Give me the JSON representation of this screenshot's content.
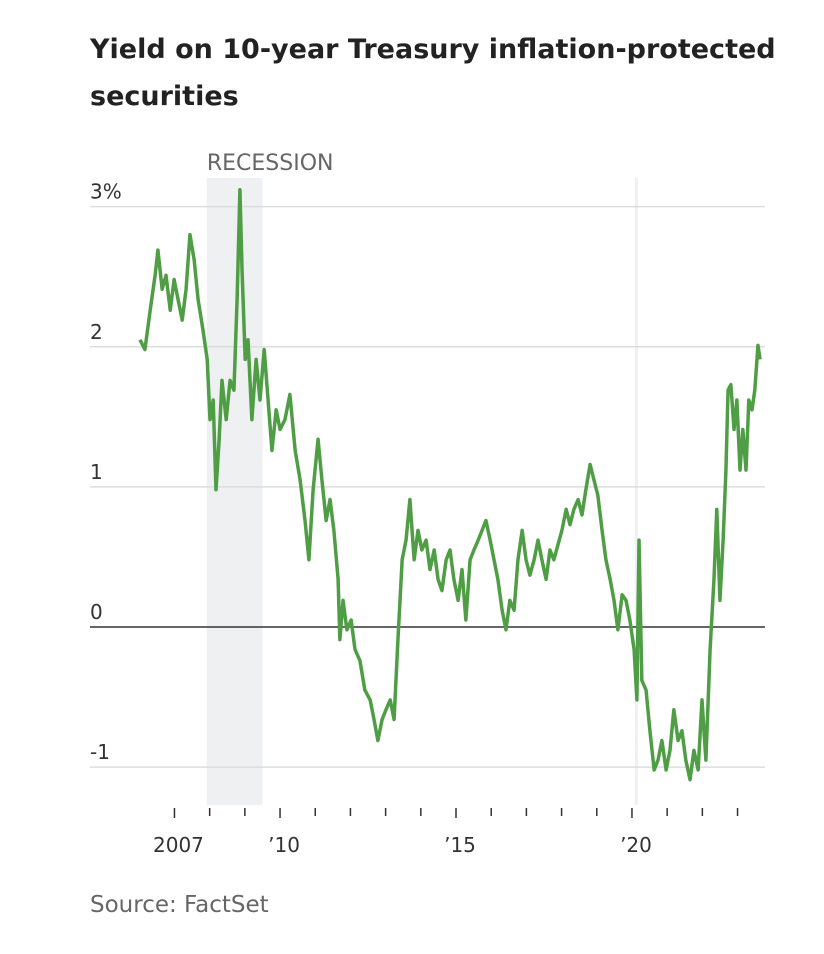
{
  "chart_data": {
    "type": "line",
    "title": "Yield on 10-year Treasury inflation-protected securities",
    "source": "Source: FactSet",
    "recession_label": "RECESSION",
    "recessions": [
      [
        2007.92,
        2009.5
      ],
      [
        2020.08,
        2020.17
      ]
    ],
    "color": "#4f9e45",
    "grid": true,
    "xlim": [
      2004.6,
      2023.78
    ],
    "ylim": [
      -1.27,
      3.19
    ],
    "xticks": [
      2007,
      {
        "value": 2010,
        "label": "’10"
      },
      {
        "value": 2015,
        "label": "’15"
      },
      {
        "value": 2020,
        "label": "’20"
      }
    ],
    "xminorticks": [
      2008,
      2009,
      2011,
      2012,
      2013,
      2014,
      2016,
      2017,
      2018,
      2019,
      2021,
      2022,
      2023
    ],
    "yticks": [
      {
        "value": 3,
        "label": "3%"
      },
      2,
      1,
      0,
      -1
    ],
    "x": [
      2006.02,
      2006.16,
      2006.31,
      2006.45,
      2006.53,
      2006.65,
      2006.76,
      2006.88,
      2006.99,
      2007.1,
      2007.22,
      2007.33,
      2007.44,
      2007.56,
      2007.67,
      2007.81,
      2007.93,
      2008.01,
      2008.1,
      2008.18,
      2008.27,
      2008.35,
      2008.47,
      2008.58,
      2008.69,
      2008.78,
      2008.86,
      2008.92,
      2009.01,
      2009.09,
      2009.2,
      2009.32,
      2009.43,
      2009.55,
      2009.66,
      2009.77,
      2009.89,
      2010.0,
      2010.14,
      2010.28,
      2010.43,
      2010.57,
      2010.71,
      2010.82,
      2010.94,
      2011.08,
      2011.19,
      2011.31,
      2011.42,
      2011.53,
      2011.65,
      2011.7,
      2011.79,
      2011.9,
      2012.02,
      2012.13,
      2012.27,
      2012.41,
      2012.56,
      2012.67,
      2012.78,
      2012.9,
      2013.01,
      2013.13,
      2013.24,
      2013.35,
      2013.47,
      2013.58,
      2013.69,
      2013.81,
      2013.92,
      2014.03,
      2014.15,
      2014.26,
      2014.38,
      2014.49,
      2014.6,
      2014.72,
      2014.83,
      2014.94,
      2015.06,
      2015.17,
      2015.28,
      2015.4,
      2015.51,
      2015.63,
      2015.74,
      2015.85,
      2015.97,
      2016.08,
      2016.19,
      2016.31,
      2016.42,
      2016.53,
      2016.65,
      2016.76,
      2016.88,
      2016.99,
      2017.1,
      2017.22,
      2017.33,
      2017.44,
      2017.56,
      2017.67,
      2017.78,
      2017.9,
      2018.01,
      2018.13,
      2018.24,
      2018.35,
      2018.47,
      2018.58,
      2018.69,
      2018.81,
      2018.92,
      2019.03,
      2019.15,
      2019.26,
      2019.38,
      2019.49,
      2019.6,
      2019.72,
      2019.83,
      2019.94,
      2020.06,
      2020.14,
      2020.2,
      2020.28,
      2020.4,
      2020.51,
      2020.63,
      2020.74,
      2020.85,
      2020.97,
      2021.08,
      2021.19,
      2021.31,
      2021.42,
      2021.53,
      2021.65,
      2021.76,
      2021.88,
      2021.99,
      2022.1,
      2022.22,
      2022.33,
      2022.41,
      2022.5,
      2022.59,
      2022.67,
      2022.73,
      2022.81,
      2022.9,
      2022.98,
      2023.07,
      2023.15,
      2023.24,
      2023.32,
      2023.41,
      2023.49,
      2023.58,
      2023.64
    ],
    "values": [
      2.05,
      1.98,
      2.26,
      2.51,
      2.69,
      2.41,
      2.51,
      2.26,
      2.48,
      2.34,
      2.19,
      2.41,
      2.8,
      2.62,
      2.34,
      2.12,
      1.91,
      1.48,
      1.62,
      0.98,
      1.34,
      1.76,
      1.48,
      1.76,
      1.69,
      2.34,
      3.12,
      2.55,
      1.91,
      2.05,
      1.48,
      1.91,
      1.62,
      1.98,
      1.62,
      1.26,
      1.55,
      1.41,
      1.48,
      1.66,
      1.26,
      1.05,
      0.76,
      0.48,
      0.98,
      1.34,
      1.05,
      0.76,
      0.91,
      0.69,
      0.34,
      -0.09,
      0.19,
      -0.02,
      0.05,
      -0.16,
      -0.24,
      -0.45,
      -0.52,
      -0.66,
      -0.81,
      -0.66,
      -0.59,
      -0.52,
      -0.66,
      -0.09,
      0.48,
      0.62,
      0.91,
      0.48,
      0.69,
      0.55,
      0.62,
      0.41,
      0.55,
      0.34,
      0.26,
      0.48,
      0.55,
      0.34,
      0.19,
      0.41,
      0.05,
      0.48,
      0.55,
      0.62,
      0.69,
      0.76,
      0.62,
      0.48,
      0.34,
      0.12,
      -0.02,
      0.19,
      0.12,
      0.48,
      0.69,
      0.48,
      0.37,
      0.48,
      0.62,
      0.48,
      0.34,
      0.55,
      0.48,
      0.59,
      0.69,
      0.84,
      0.73,
      0.84,
      0.91,
      0.8,
      0.98,
      1.16,
      1.05,
      0.94,
      0.69,
      0.48,
      0.34,
      0.19,
      -0.02,
      0.23,
      0.19,
      0.05,
      -0.16,
      -0.52,
      0.62,
      -0.38,
      -0.45,
      -0.74,
      -1.02,
      -0.95,
      -0.81,
      -1.02,
      -0.88,
      -0.59,
      -0.81,
      -0.74,
      -0.95,
      -1.09,
      -0.88,
      -1.02,
      -0.52,
      -0.95,
      -0.16,
      0.34,
      0.84,
      0.19,
      0.62,
      1.12,
      1.69,
      1.73,
      1.41,
      1.62,
      1.12,
      1.41,
      1.12,
      1.62,
      1.55,
      1.69,
      2.01,
      1.91
    ]
  }
}
